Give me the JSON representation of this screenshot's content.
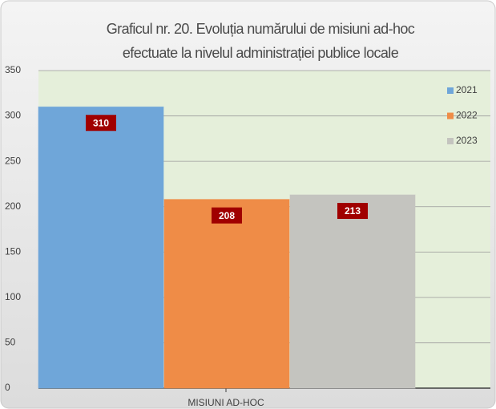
{
  "chart_data": {
    "type": "bar",
    "title": [
      "Graficul nr. 20. Evoluția numărului de misiuni ad-hoc",
      "efectuate la nivelul administrației publice locale"
    ],
    "categories": [
      "MISIUNI AD-HOC"
    ],
    "series": [
      {
        "name": "2021",
        "color": "#6fa6d9",
        "values": [
          310
        ]
      },
      {
        "name": "2022",
        "color": "#ef8c47",
        "values": [
          208
        ]
      },
      {
        "name": "2023",
        "color": "#c4c4bf",
        "values": [
          213
        ]
      }
    ],
    "ylim": [
      0,
      350
    ],
    "yticks": [
      0,
      50,
      100,
      150,
      200,
      250,
      300,
      350
    ],
    "grid": true,
    "legend": "top-right"
  }
}
